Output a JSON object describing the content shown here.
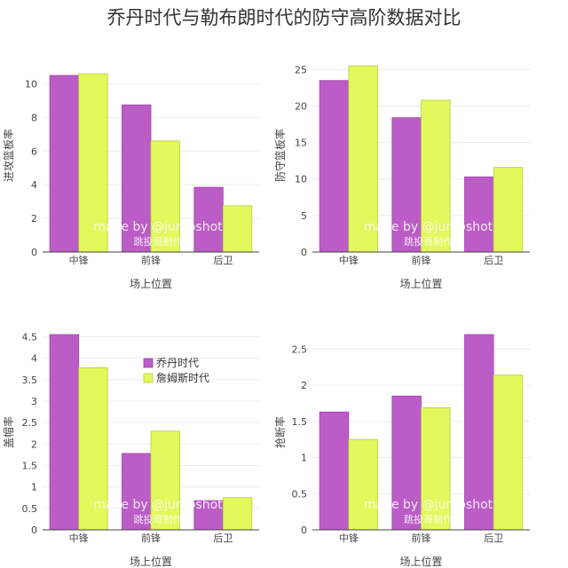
{
  "title": "乔丹时代与勒布朗时代的防守高阶数据对比",
  "watermark": {
    "line1": "made by @jumpshot",
    "line2": "跳投哥制作"
  },
  "colors": {
    "series1": "#bb5cc7",
    "series2": "#e2f85c",
    "grid": "#ececec",
    "axis": "#444444"
  },
  "chart_data": [
    {
      "type": "bar",
      "categories": [
        "中锋",
        "前锋",
        "后卫"
      ],
      "xlabel": "场上位置",
      "ylabel": "进攻篮板率",
      "ylim": [
        0,
        11.5
      ],
      "yticks": [
        0,
        2,
        4,
        6,
        8,
        10
      ],
      "series": [
        {
          "values": [
            10.5,
            8.75,
            3.85
          ]
        },
        {
          "values": [
            10.6,
            6.6,
            2.75
          ]
        }
      ]
    },
    {
      "type": "bar",
      "categories": [
        "中锋",
        "前锋",
        "后卫"
      ],
      "xlabel": "场上位置",
      "ylabel": "防守篮板率",
      "ylim": [
        0,
        26.5
      ],
      "yticks": [
        0,
        5,
        10,
        15,
        20,
        25
      ],
      "series": [
        {
          "values": [
            23.5,
            18.4,
            10.3
          ]
        },
        {
          "values": [
            25.5,
            20.8,
            11.6
          ]
        }
      ]
    },
    {
      "type": "bar",
      "categories": [
        "中锋",
        "前锋",
        "后卫"
      ],
      "xlabel": "场上位置",
      "ylabel": "盖帽率",
      "ylim": [
        0,
        4.55
      ],
      "yticks": [
        0,
        0.5,
        1,
        1.5,
        2,
        2.5,
        3,
        3.5,
        4,
        4.5
      ],
      "legend": {
        "position": "top-right",
        "entries": [
          "乔丹时代",
          "詹姆斯时代"
        ]
      },
      "series": [
        {
          "name": "乔丹时代",
          "values": [
            4.55,
            1.78,
            0.68
          ]
        },
        {
          "name": "詹姆斯时代",
          "values": [
            3.78,
            2.3,
            0.75
          ]
        }
      ]
    },
    {
      "type": "bar",
      "categories": [
        "中锋",
        "前锋",
        "后卫"
      ],
      "xlabel": "场上位置",
      "ylabel": "抢断率",
      "ylim": [
        0,
        2.7
      ],
      "yticks": [
        0,
        0.5,
        1,
        1.5,
        2,
        2.5
      ],
      "series": [
        {
          "values": [
            1.63,
            1.85,
            2.7
          ]
        },
        {
          "values": [
            1.25,
            1.69,
            2.14
          ]
        }
      ]
    }
  ]
}
